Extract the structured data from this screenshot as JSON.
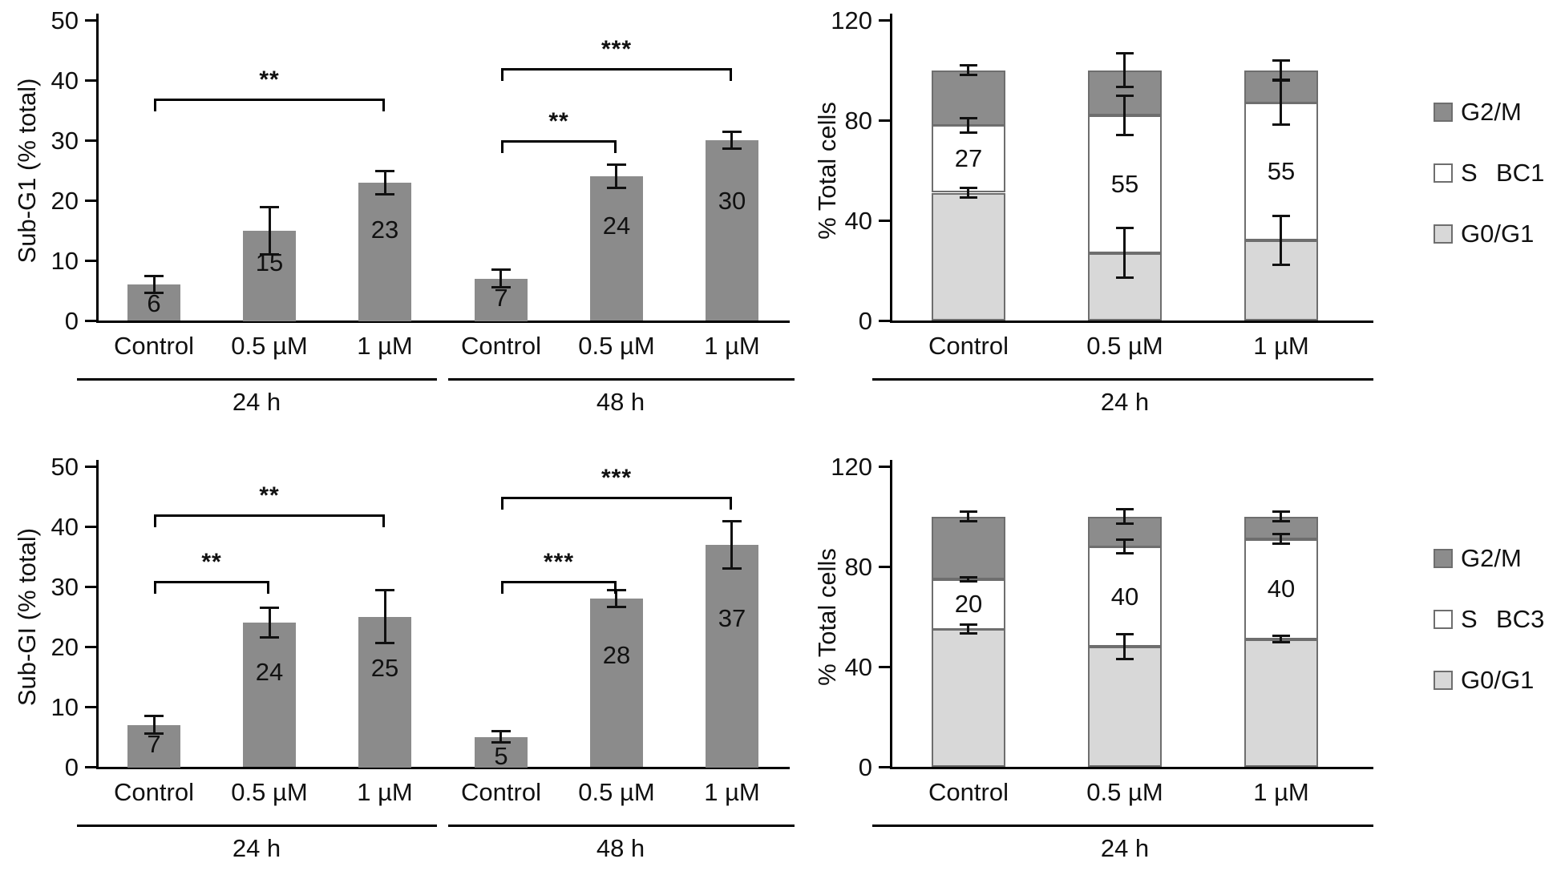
{
  "chart_data": [
    {
      "id": "sub-g1-bc1",
      "type": "bar",
      "ylabel": "Sub-G1 (% total)",
      "ylim": [
        0,
        50
      ],
      "yticks": [
        0,
        10,
        20,
        30,
        40,
        50
      ],
      "bar_color": "#8b8b8b",
      "grid": false,
      "groups": [
        {
          "label": "24 h",
          "bars": [
            {
              "category": "Control",
              "value": 6,
              "error": 1.5
            },
            {
              "category": "0.5 µM",
              "value": 15,
              "error": 4
            },
            {
              "category": "1 µM",
              "value": 23,
              "error": 2
            }
          ]
        },
        {
          "label": "48 h",
          "bars": [
            {
              "category": "Control",
              "value": 7,
              "error": 1.5
            },
            {
              "category": "0.5 µM",
              "value": 24,
              "error": 2
            },
            {
              "category": "1 µM",
              "value": 30,
              "error": 1.5
            }
          ]
        }
      ],
      "significance": [
        {
          "from": 0,
          "to": 2,
          "label": "**",
          "y": 37
        },
        {
          "from": 3,
          "to": 4,
          "label": "**",
          "y": 30
        },
        {
          "from": 3,
          "to": 5,
          "label": "***",
          "y": 42
        }
      ]
    },
    {
      "id": "cell-cycle-bc1",
      "type": "stacked_bar",
      "ylabel": "% Total cells",
      "ylim": [
        0,
        120
      ],
      "yticks": [
        0,
        40,
        80,
        120
      ],
      "group_label": "24 h",
      "side_label": "BC1",
      "segments_order": [
        "G0/G1",
        "S",
        "G2/M"
      ],
      "legend": [
        "G2/M",
        "S",
        "G0/G1"
      ],
      "colors": {
        "G0/G1": "#d8d8d8",
        "S": "#ffffff",
        "G2/M": "#8c8c8c"
      },
      "bars": [
        {
          "category": "Control",
          "values": {
            "G0/G1": 51,
            "S": 27,
            "G2/M": 22
          },
          "errors": {
            "G0/G1": 2,
            "S": 3,
            "G2/M": 2
          },
          "s_label": "27"
        },
        {
          "category": "0.5 µM",
          "values": {
            "G0/G1": 27,
            "S": 55,
            "G2/M": 18
          },
          "errors": {
            "G0/G1": 10,
            "S": 8,
            "G2/M": 7
          },
          "s_label": "55"
        },
        {
          "category": "1 µM",
          "values": {
            "G0/G1": 32,
            "S": 55,
            "G2/M": 13
          },
          "errors": {
            "G0/G1": 10,
            "S": 9,
            "G2/M": 4
          },
          "s_label": "55"
        }
      ]
    },
    {
      "id": "sub-gi-bc3",
      "type": "bar",
      "ylabel": "Sub-GI (% total)",
      "ylim": [
        0,
        50
      ],
      "yticks": [
        0,
        10,
        20,
        30,
        40,
        50
      ],
      "bar_color": "#8b8b8b",
      "grid": false,
      "groups": [
        {
          "label": "24 h",
          "bars": [
            {
              "category": "Control",
              "value": 7,
              "error": 1.5
            },
            {
              "category": "0.5 µM",
              "value": 24,
              "error": 2.5
            },
            {
              "category": "1 µM",
              "value": 25,
              "error": 4.5
            }
          ]
        },
        {
          "label": "48 h",
          "bars": [
            {
              "category": "Control",
              "value": 5,
              "error": 1
            },
            {
              "category": "0.5 µM",
              "value": 28,
              "error": 1.5
            },
            {
              "category": "1 µM",
              "value": 37,
              "error": 4
            }
          ]
        }
      ],
      "significance": [
        {
          "from": 0,
          "to": 1,
          "label": "**",
          "y": 31
        },
        {
          "from": 0,
          "to": 2,
          "label": "**",
          "y": 42
        },
        {
          "from": 3,
          "to": 4,
          "label": "***",
          "y": 31
        },
        {
          "from": 3,
          "to": 5,
          "label": "***",
          "y": 45
        }
      ]
    },
    {
      "id": "cell-cycle-bc3",
      "type": "stacked_bar",
      "ylabel": "% Total cells",
      "ylim": [
        0,
        120
      ],
      "yticks": [
        0,
        40,
        80,
        120
      ],
      "group_label": "24 h",
      "side_label": "BC3",
      "segments_order": [
        "G0/G1",
        "S",
        "G2/M"
      ],
      "legend": [
        "G2/M",
        "S",
        "G0/G1"
      ],
      "colors": {
        "G0/G1": "#d8d8d8",
        "S": "#ffffff",
        "G2/M": "#8c8c8c"
      },
      "bars": [
        {
          "category": "Control",
          "values": {
            "G0/G1": 55,
            "S": 20,
            "G2/M": 25
          },
          "errors": {
            "G0/G1": 2,
            "S": 1,
            "G2/M": 2
          },
          "s_label": "20"
        },
        {
          "category": "0.5 µM",
          "values": {
            "G0/G1": 48,
            "S": 40,
            "G2/M": 12
          },
          "errors": {
            "G0/G1": 5,
            "S": 3,
            "G2/M": 3
          },
          "s_label": "40"
        },
        {
          "category": "1 µM",
          "values": {
            "G0/G1": 51,
            "S": 40,
            "G2/M": 9
          },
          "errors": {
            "G0/G1": 1.5,
            "S": 2,
            "G2/M": 2
          },
          "s_label": "40"
        }
      ]
    }
  ]
}
